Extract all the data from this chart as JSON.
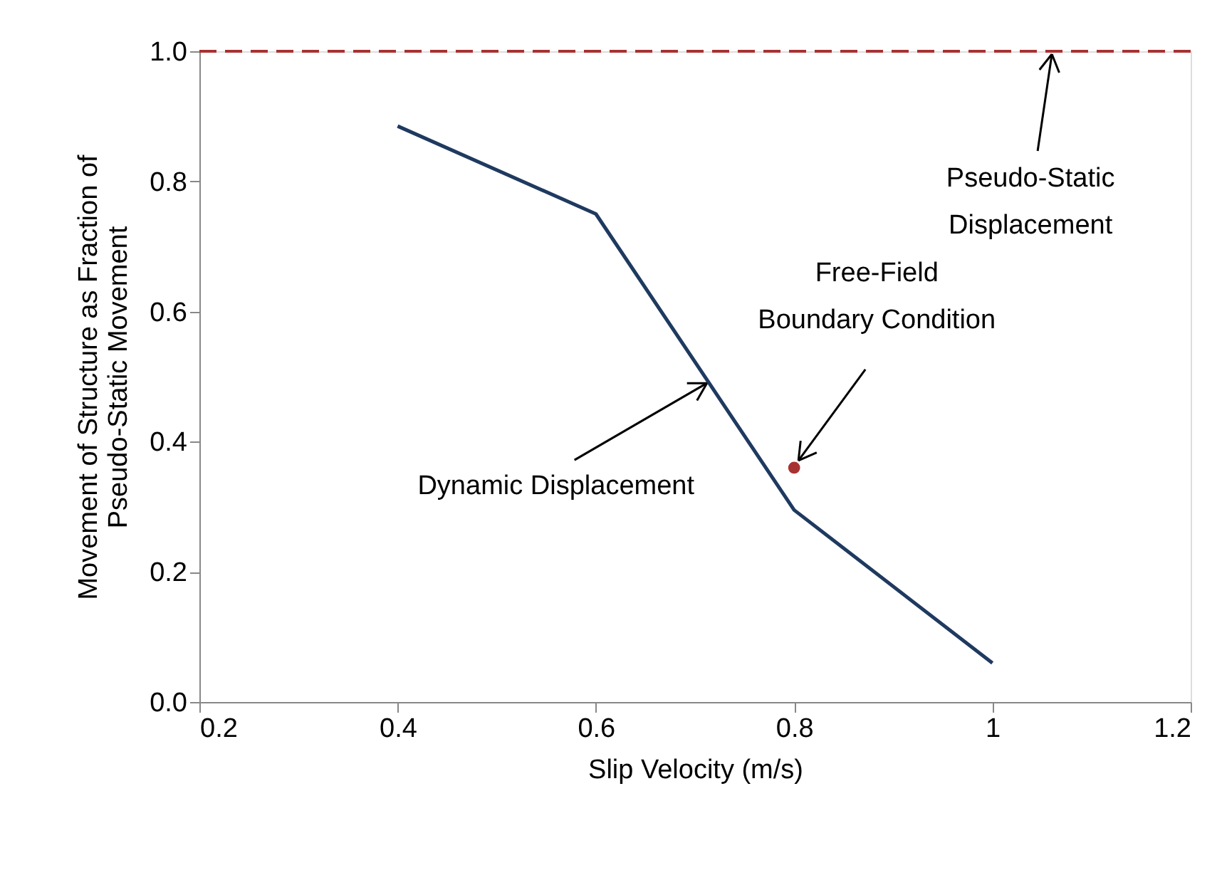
{
  "chart_data": {
    "type": "line",
    "xlabel": "Slip Velocity (m/s)",
    "ylabel": "Movement of Structure as Fraction of\nPseudo-Static Movement",
    "xlim": [
      0.2,
      1.2
    ],
    "xticks": [
      0.2,
      0.4,
      0.6,
      0.8,
      1,
      1.2
    ],
    "ylim": [
      0,
      1
    ],
    "yticks": [
      {
        "value": 0,
        "label": "0.0"
      },
      0.2,
      0.4,
      0.6,
      0.8,
      {
        "value": 1,
        "label": "1.0"
      }
    ],
    "grid": false,
    "line_style": "solid",
    "series": [
      {
        "marker": "none",
        "color": "#1f3a60",
        "x": [
          0.4,
          0.6,
          0.8,
          1.0
        ],
        "values": [
          0.885,
          0.75,
          0.295,
          0.06
        ]
      },
      {
        "type": "scatter",
        "marker": "circle",
        "color": "#a83232",
        "x": [
          0.8
        ],
        "values": [
          0.36
        ]
      }
    ],
    "ref_lines": [
      {
        "axis": "y",
        "value": 1.0,
        "color": "#a83232",
        "line_style": "dashed"
      }
    ],
    "annotations": [
      {
        "text": "Pseudo-Static\nDisplacement",
        "x": 1.06,
        "y": 1.0
      },
      {
        "text": "Free-Field\nBoundary Condition",
        "x": 0.8,
        "y": 0.36
      },
      {
        "text": "Dynamic Displacement",
        "x": 0.712,
        "y": 0.49
      }
    ]
  }
}
